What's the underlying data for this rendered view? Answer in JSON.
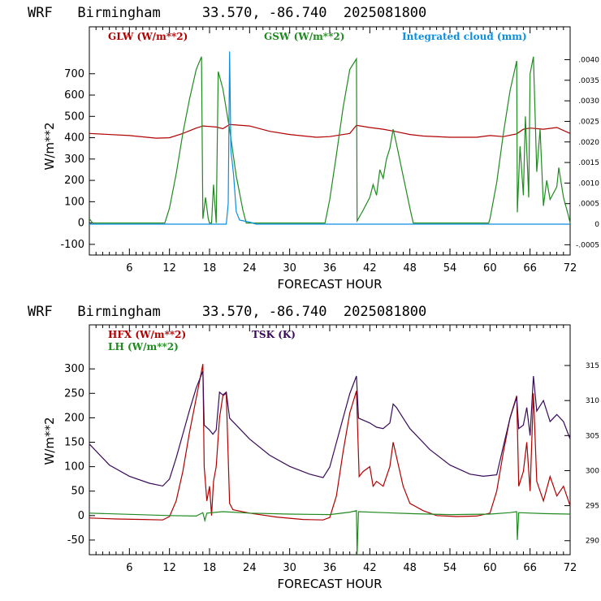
{
  "colors": {
    "glw": "#b00000",
    "gsw": "#1f8a1f",
    "cloud": "#0a8fe0",
    "hfx": "#b00000",
    "lh": "#1f8a1f",
    "tsk": "#3a0a5a"
  },
  "chart_data": [
    {
      "type": "line",
      "title": "WRF   Birmingham     33.570, -86.740  2025081800",
      "xlabel": "FORECAST HOUR",
      "ylabel": "W/m**2",
      "xlim": [
        0,
        72
      ],
      "ylim": [
        -150,
        920
      ],
      "x_ticks": [
        "6",
        "12",
        "18",
        "24",
        "30",
        "36",
        "42",
        "48",
        "54",
        "60",
        "66",
        "72"
      ],
      "y_ticks": [
        "-100",
        "0",
        "100",
        "200",
        "300",
        "400",
        "500",
        "600",
        "700"
      ],
      "y2_ticks": [
        "-.0005",
        "0",
        ".0005",
        ".0010",
        ".0015",
        ".0020",
        ".0025",
        ".0030",
        ".0035",
        ".0040"
      ],
      "legend": [
        "GLW (W/m**2)",
        "GSW (W/m**2)",
        "Integrated cloud (mm)"
      ],
      "series": [
        {
          "name": "GLW (W/m**2)",
          "points": [
            [
              0,
              420
            ],
            [
              6,
              410
            ],
            [
              10,
              398
            ],
            [
              12,
              400
            ],
            [
              14,
              420
            ],
            [
              16,
              445
            ],
            [
              17,
              455
            ],
            [
              19,
              450
            ],
            [
              20,
              442
            ],
            [
              21,
              462
            ],
            [
              24,
              455
            ],
            [
              27,
              430
            ],
            [
              30,
              415
            ],
            [
              34,
              402
            ],
            [
              36,
              405
            ],
            [
              39,
              420
            ],
            [
              40,
              458
            ],
            [
              42,
              448
            ],
            [
              44,
              440
            ],
            [
              46,
              428
            ],
            [
              48,
              415
            ],
            [
              50,
              408
            ],
            [
              54,
              402
            ],
            [
              58,
              402
            ],
            [
              60,
              410
            ],
            [
              62,
              405
            ],
            [
              64,
              418
            ],
            [
              65,
              440
            ],
            [
              66,
              445
            ],
            [
              68,
              440
            ],
            [
              70,
              448
            ],
            [
              72,
              420
            ]
          ]
        },
        {
          "name": "GSW (W/m**2)",
          "points": [
            [
              0,
              20
            ],
            [
              0.5,
              0
            ],
            [
              11.3,
              0
            ],
            [
              12,
              70
            ],
            [
              13,
              230
            ],
            [
              14,
              420
            ],
            [
              15,
              580
            ],
            [
              16,
              720
            ],
            [
              16.8,
              780
            ],
            [
              17,
              20
            ],
            [
              17.4,
              120
            ],
            [
              17.8,
              20
            ],
            [
              18,
              0
            ],
            [
              18.3,
              0
            ],
            [
              18.6,
              180
            ],
            [
              19,
              0
            ],
            [
              19.3,
              710
            ],
            [
              20,
              630
            ],
            [
              21,
              440
            ],
            [
              22,
              220
            ],
            [
              23,
              60
            ],
            [
              23.5,
              0
            ],
            [
              35.3,
              0
            ],
            [
              36,
              110
            ],
            [
              37,
              320
            ],
            [
              38,
              540
            ],
            [
              39,
              720
            ],
            [
              40,
              770
            ],
            [
              40.1,
              10
            ],
            [
              41,
              60
            ],
            [
              42,
              120
            ],
            [
              42.5,
              180
            ],
            [
              43,
              130
            ],
            [
              43.5,
              250
            ],
            [
              44,
              210
            ],
            [
              44.5,
              300
            ],
            [
              45,
              350
            ],
            [
              45.5,
              440
            ],
            [
              46,
              370
            ],
            [
              47,
              220
            ],
            [
              48,
              70
            ],
            [
              48.5,
              0
            ],
            [
              59.8,
              0
            ],
            [
              60,
              20
            ],
            [
              61,
              190
            ],
            [
              62,
              420
            ],
            [
              63,
              620
            ],
            [
              64,
              760
            ],
            [
              64.1,
              50
            ],
            [
              64.5,
              360
            ],
            [
              65,
              130
            ],
            [
              65.3,
              500
            ],
            [
              65.8,
              120
            ],
            [
              66,
              700
            ],
            [
              66.5,
              780
            ],
            [
              67,
              240
            ],
            [
              67.5,
              440
            ],
            [
              68,
              80
            ],
            [
              68.5,
              200
            ],
            [
              69,
              110
            ],
            [
              70,
              170
            ],
            [
              70.3,
              260
            ],
            [
              71,
              120
            ],
            [
              71.7,
              40
            ],
            [
              72,
              0
            ]
          ]
        },
        {
          "name": "Integrated cloud (mm)",
          "y_axis": "right",
          "points": [
            [
              0,
              0
            ],
            [
              20.5,
              0
            ],
            [
              20.8,
              0.0005
            ],
            [
              21,
              0.0042
            ],
            [
              21.2,
              0.0018
            ],
            [
              21.6,
              0.0012
            ],
            [
              22,
              0.0003
            ],
            [
              22.5,
              0.0001
            ],
            [
              24,
              5e-05
            ],
            [
              25,
              0
            ],
            [
              72,
              0
            ]
          ]
        }
      ]
    },
    {
      "type": "line",
      "title": "WRF   Birmingham     33.570, -86.740  2025081800",
      "xlabel": "FORECAST HOUR",
      "ylabel": "W/m**2",
      "xlim": [
        0,
        72
      ],
      "ylim": [
        -80,
        390
      ],
      "x_ticks": [
        "6",
        "12",
        "18",
        "24",
        "30",
        "36",
        "42",
        "48",
        "54",
        "60",
        "66",
        "72"
      ],
      "y_ticks": [
        "-50",
        "0",
        "50",
        "100",
        "150",
        "200",
        "250",
        "300"
      ],
      "y2_ticks": [
        "290",
        "295",
        "300",
        "305",
        "310",
        "315"
      ],
      "legend": [
        "HFX (W/m**2)",
        "LH  (W/m**2)",
        "TSK (K)"
      ],
      "series": [
        {
          "name": "HFX (W/m**2)",
          "points": [
            [
              0,
              -5
            ],
            [
              4,
              -7
            ],
            [
              8,
              -8
            ],
            [
              11,
              -9
            ],
            [
              12,
              -2
            ],
            [
              13,
              30
            ],
            [
              14,
              90
            ],
            [
              15,
              170
            ],
            [
              16,
              240
            ],
            [
              17,
              310
            ],
            [
              17.2,
              100
            ],
            [
              17.6,
              30
            ],
            [
              18,
              60
            ],
            [
              18.3,
              0
            ],
            [
              18.6,
              70
            ],
            [
              19,
              100
            ],
            [
              19.5,
              200
            ],
            [
              20,
              245
            ],
            [
              20.5,
              250
            ],
            [
              21,
              25
            ],
            [
              21.5,
              12
            ],
            [
              24,
              5
            ],
            [
              28,
              -3
            ],
            [
              32,
              -8
            ],
            [
              35,
              -9
            ],
            [
              36,
              -4
            ],
            [
              37,
              40
            ],
            [
              38,
              130
            ],
            [
              39,
              210
            ],
            [
              40,
              255
            ],
            [
              40.4,
              80
            ],
            [
              41,
              90
            ],
            [
              42,
              100
            ],
            [
              42.5,
              60
            ],
            [
              43,
              70
            ],
            [
              44,
              60
            ],
            [
              45,
              100
            ],
            [
              45.5,
              150
            ],
            [
              46,
              120
            ],
            [
              47,
              60
            ],
            [
              48,
              25
            ],
            [
              50,
              10
            ],
            [
              52,
              0
            ],
            [
              55,
              -2
            ],
            [
              58,
              -1
            ],
            [
              60,
              5
            ],
            [
              61,
              50
            ],
            [
              62,
              130
            ],
            [
              63,
              200
            ],
            [
              64,
              245
            ],
            [
              64.3,
              60
            ],
            [
              65,
              90
            ],
            [
              65.5,
              150
            ],
            [
              66,
              50
            ],
            [
              66.5,
              250
            ],
            [
              67,
              70
            ],
            [
              68,
              30
            ],
            [
              69,
              80
            ],
            [
              70,
              40
            ],
            [
              71,
              60
            ],
            [
              72,
              20
            ]
          ]
        },
        {
          "name": "LH  (W/m**2)",
          "points": [
            [
              0,
              5
            ],
            [
              12,
              0
            ],
            [
              16,
              -1
            ],
            [
              17,
              6
            ],
            [
              17.3,
              -10
            ],
            [
              17.6,
              5
            ],
            [
              20,
              8
            ],
            [
              24,
              5
            ],
            [
              30,
              3
            ],
            [
              36,
              2
            ],
            [
              39,
              7
            ],
            [
              40,
              10
            ],
            [
              40.1,
              -80
            ],
            [
              40.3,
              8
            ],
            [
              44,
              6
            ],
            [
              48,
              4
            ],
            [
              54,
              2
            ],
            [
              60,
              3
            ],
            [
              63,
              6
            ],
            [
              64,
              8
            ],
            [
              64.1,
              -50
            ],
            [
              64.3,
              6
            ],
            [
              68,
              4
            ],
            [
              72,
              3
            ]
          ]
        },
        {
          "name": "TSK (K)",
          "y_axis": "right",
          "points": [
            [
              0,
              303.8
            ],
            [
              3,
              300.8
            ],
            [
              6,
              299.2
            ],
            [
              9,
              298.2
            ],
            [
              11,
              297.8
            ],
            [
              12,
              298.8
            ],
            [
              13,
              301.8
            ],
            [
              14,
              305.2
            ],
            [
              15,
              308.6
            ],
            [
              16,
              311.8
            ],
            [
              17,
              314.2
            ],
            [
              17.2,
              306.5
            ],
            [
              18,
              305.8
            ],
            [
              18.5,
              305.2
            ],
            [
              19,
              305.8
            ],
            [
              19.5,
              311.2
            ],
            [
              20,
              310.8
            ],
            [
              20.5,
              311.2
            ],
            [
              21,
              307.5
            ],
            [
              24,
              304.5
            ],
            [
              27,
              302.2
            ],
            [
              30,
              300.6
            ],
            [
              33,
              299.5
            ],
            [
              35,
              299.0
            ],
            [
              36,
              300.5
            ],
            [
              37,
              304.0
            ],
            [
              38,
              307.5
            ],
            [
              39,
              311.0
            ],
            [
              40,
              313.5
            ],
            [
              40.3,
              307.5
            ],
            [
              42,
              306.8
            ],
            [
              43,
              306.2
            ],
            [
              44,
              306.0
            ],
            [
              45,
              306.8
            ],
            [
              45.5,
              309.5
            ],
            [
              46,
              309.0
            ],
            [
              47,
              307.5
            ],
            [
              48,
              306.0
            ],
            [
              51,
              303.0
            ],
            [
              54,
              300.8
            ],
            [
              57,
              299.5
            ],
            [
              59,
              299.2
            ],
            [
              60,
              299.3
            ],
            [
              61,
              299.4
            ],
            [
              62,
              303.5
            ],
            [
              63,
              307.5
            ],
            [
              64,
              310.5
            ],
            [
              64.3,
              306.0
            ],
            [
              65,
              306.5
            ],
            [
              65.5,
              309.0
            ],
            [
              66,
              305.0
            ],
            [
              66.5,
              313.5
            ],
            [
              67,
              308.5
            ],
            [
              68,
              310.0
            ],
            [
              69,
              307.0
            ],
            [
              70,
              308.0
            ],
            [
              71,
              307.0
            ],
            [
              72,
              304.5
            ]
          ]
        }
      ]
    }
  ]
}
